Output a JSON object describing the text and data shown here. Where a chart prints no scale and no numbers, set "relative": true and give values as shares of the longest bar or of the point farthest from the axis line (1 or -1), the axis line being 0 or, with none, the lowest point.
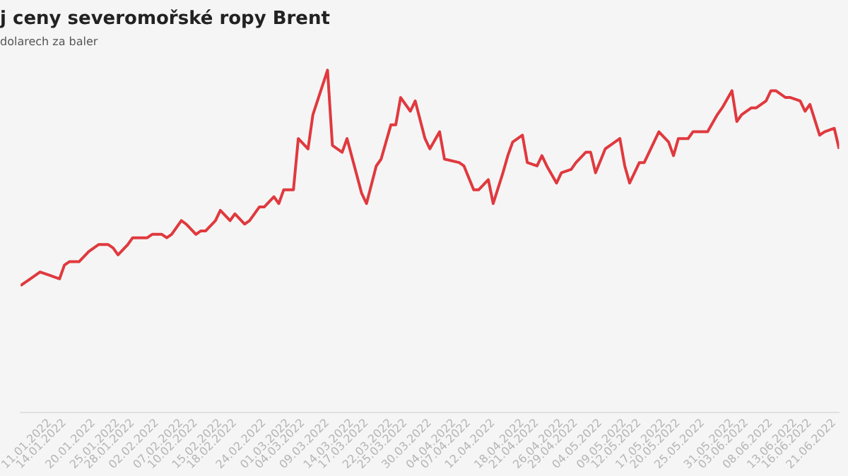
{
  "chart_data": {
    "type": "line",
    "title": "j ceny severomořské ropy Brent",
    "subtitle": "dolarech za baler",
    "relative": true,
    "legend": false,
    "marker": "none",
    "line_style": "solid",
    "xlim": [
      "2022-01-05",
      "2022-06-22"
    ],
    "xticks": [
      {
        "value": "2022-01-11",
        "label": "11.01.2022"
      },
      {
        "value": "2022-01-14",
        "label": "14.01.2022"
      },
      {
        "value": "2022-01-20",
        "label": "20.01.2022"
      },
      {
        "value": "2022-01-25",
        "label": "25.01.2022"
      },
      {
        "value": "2022-01-28",
        "label": "28.01.2022"
      },
      {
        "value": "2022-02-02",
        "label": "02.02.2022"
      },
      {
        "value": "2022-02-07",
        "label": "07.02.2022"
      },
      {
        "value": "2022-02-10",
        "label": "10.02.2022"
      },
      {
        "value": "2022-02-15",
        "label": "15.02.2022"
      },
      {
        "value": "2022-02-18",
        "label": "18.02.2022"
      },
      {
        "value": "2022-02-24",
        "label": "24.02.2022"
      },
      {
        "value": "2022-03-01",
        "label": "01.03.2022"
      },
      {
        "value": "2022-03-04",
        "label": "04.03.2022"
      },
      {
        "value": "2022-03-09",
        "label": "09.03.2022"
      },
      {
        "value": "2022-03-14",
        "label": "14.03.2022"
      },
      {
        "value": "2022-03-17",
        "label": "17.03.2022"
      },
      {
        "value": "2022-03-22",
        "label": "22.03.2022"
      },
      {
        "value": "2022-03-25",
        "label": "25.03.2022"
      },
      {
        "value": "2022-03-30",
        "label": "30.03.2022"
      },
      {
        "value": "2022-04-04",
        "label": "04.04.2022"
      },
      {
        "value": "2022-04-07",
        "label": "07.04.2022"
      },
      {
        "value": "2022-04-12",
        "label": "12.04.2022"
      },
      {
        "value": "2022-04-18",
        "label": "18.04.2022"
      },
      {
        "value": "2022-04-21",
        "label": "21.04.2022"
      },
      {
        "value": "2022-04-26",
        "label": "26.04.2022"
      },
      {
        "value": "2022-04-29",
        "label": "29.04.2022"
      },
      {
        "value": "2022-05-04",
        "label": "04.05.2022"
      },
      {
        "value": "2022-05-09",
        "label": "09.05.2022"
      },
      {
        "value": "2022-05-12",
        "label": "12.05.2022"
      },
      {
        "value": "2022-05-17",
        "label": "17.05.2022"
      },
      {
        "value": "2022-05-20",
        "label": "20.05.2022"
      },
      {
        "value": "2022-05-25",
        "label": "25.05.2022"
      },
      {
        "value": "2022-05-31",
        "label": "31.05.2022"
      },
      {
        "value": "2022-06-03",
        "label": "03.06.2022"
      },
      {
        "value": "2022-06-08",
        "label": "08.06.2022"
      },
      {
        "value": "2022-06-13",
        "label": "13.06.2022"
      },
      {
        "value": "2022-06-16",
        "label": "16.06.2022"
      },
      {
        "value": "2022-06-21",
        "label": "21.06.2022"
      }
    ],
    "x": [
      "2022-01-05",
      "2022-01-07",
      "2022-01-09",
      "2022-01-11",
      "2022-01-13",
      "2022-01-14",
      "2022-01-15",
      "2022-01-17",
      "2022-01-19",
      "2022-01-21",
      "2022-01-23",
      "2022-01-24",
      "2022-01-25",
      "2022-01-27",
      "2022-01-28",
      "2022-01-29",
      "2022-01-31",
      "2022-02-01",
      "2022-02-03",
      "2022-02-04",
      "2022-02-05",
      "2022-02-07",
      "2022-02-08",
      "2022-02-10",
      "2022-02-11",
      "2022-02-12",
      "2022-02-14",
      "2022-02-15",
      "2022-02-17",
      "2022-02-18",
      "2022-02-20",
      "2022-02-21",
      "2022-02-23",
      "2022-02-24",
      "2022-02-26",
      "2022-02-27",
      "2022-02-28",
      "2022-03-02",
      "2022-03-03",
      "2022-03-05",
      "2022-03-06",
      "2022-03-09",
      "2022-03-10",
      "2022-03-12",
      "2022-03-13",
      "2022-03-16",
      "2022-03-17",
      "2022-03-19",
      "2022-03-20",
      "2022-03-22",
      "2022-03-23",
      "2022-03-24",
      "2022-03-26",
      "2022-03-27",
      "2022-03-29",
      "2022-03-30",
      "2022-04-01",
      "2022-04-02",
      "2022-04-05",
      "2022-04-06",
      "2022-04-08",
      "2022-04-09",
      "2022-04-11",
      "2022-04-12",
      "2022-04-14",
      "2022-04-15",
      "2022-04-16",
      "2022-04-18",
      "2022-04-19",
      "2022-04-21",
      "2022-04-22",
      "2022-04-23",
      "2022-04-25",
      "2022-04-26",
      "2022-04-28",
      "2022-04-29",
      "2022-05-01",
      "2022-05-02",
      "2022-05-03",
      "2022-05-05",
      "2022-05-06",
      "2022-05-08",
      "2022-05-09",
      "2022-05-10",
      "2022-05-12",
      "2022-05-13",
      "2022-05-15",
      "2022-05-16",
      "2022-05-18",
      "2022-05-19",
      "2022-05-20",
      "2022-05-22",
      "2022-05-23",
      "2022-05-25",
      "2022-05-26",
      "2022-05-28",
      "2022-05-29",
      "2022-05-31",
      "2022-06-01",
      "2022-06-02",
      "2022-06-04",
      "2022-06-05",
      "2022-06-07",
      "2022-06-08",
      "2022-06-09",
      "2022-06-11",
      "2022-06-12",
      "2022-06-14",
      "2022-06-15",
      "2022-06-16",
      "2022-06-18",
      "2022-06-19",
      "2022-06-21",
      "2022-06-22"
    ],
    "series": [
      {
        "color": "#e0393e",
        "values": [
          0.37,
          0.39,
          0.41,
          0.4,
          0.39,
          0.43,
          0.44,
          0.44,
          0.47,
          0.49,
          0.49,
          0.48,
          0.46,
          0.49,
          0.51,
          0.51,
          0.51,
          0.52,
          0.52,
          0.51,
          0.52,
          0.56,
          0.55,
          0.52,
          0.53,
          0.53,
          0.56,
          0.59,
          0.56,
          0.58,
          0.55,
          0.56,
          0.6,
          0.6,
          0.63,
          0.61,
          0.65,
          0.65,
          0.8,
          0.77,
          0.87,
          1,
          0.78,
          0.76,
          0.8,
          0.64,
          0.61,
          0.72,
          0.74,
          0.84,
          0.84,
          0.92,
          0.88,
          0.91,
          0.8,
          0.77,
          0.82,
          0.74,
          0.73,
          0.72,
          0.65,
          0.65,
          0.68,
          0.61,
          0.7,
          0.75,
          0.79,
          0.81,
          0.73,
          0.72,
          0.75,
          0.72,
          0.67,
          0.7,
          0.71,
          0.73,
          0.76,
          0.76,
          0.7,
          0.77,
          0.78,
          0.8,
          0.72,
          0.67,
          0.73,
          0.73,
          0.79,
          0.82,
          0.79,
          0.75,
          0.8,
          0.8,
          0.82,
          0.82,
          0.82,
          0.87,
          0.89,
          0.94,
          0.85,
          0.87,
          0.89,
          0.89,
          0.91,
          0.94,
          0.94,
          0.92,
          0.92,
          0.91,
          0.88,
          0.9,
          0.81,
          0.82,
          0.83,
          0.77
        ]
      }
    ]
  }
}
